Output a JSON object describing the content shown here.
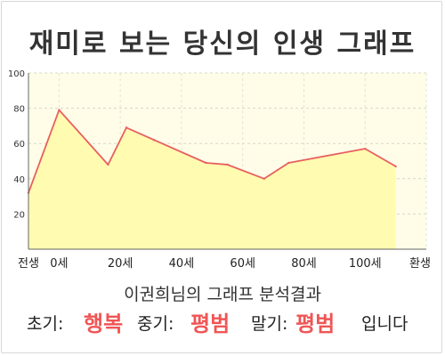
{
  "title": "재미로 보는 당신의 인생 그래프",
  "result": {
    "subtitle": "이권희님의 그래프 분석결과",
    "early_label": "초기:",
    "early_value": "행복",
    "middle_label": "중기:",
    "middle_value": "평범",
    "late_label": "말기:",
    "late_value": "평범",
    "ending": "입니다"
  },
  "colors": {
    "line": "#e86060",
    "fill": "#fffbb0",
    "plot_background": "#fffde8",
    "highlight": "#f05555"
  },
  "chart_data": {
    "type": "area",
    "title": "",
    "xlabel": "",
    "ylabel": "",
    "x": [
      -10,
      0,
      16,
      22,
      31,
      48,
      55,
      67,
      75,
      100,
      110
    ],
    "values": [
      32,
      79,
      48,
      69,
      62,
      49,
      48,
      40,
      49,
      57,
      47
    ],
    "ylim": [
      0,
      100
    ],
    "yticks": [
      20,
      40,
      60,
      80,
      100
    ],
    "xticks": [
      {
        "x": -10,
        "label": "전생"
      },
      {
        "x": 0,
        "label": "0세"
      },
      {
        "x": 20,
        "label": "20세"
      },
      {
        "x": 40,
        "label": "40세"
      },
      {
        "x": 60,
        "label": "60세"
      },
      {
        "x": 80,
        "label": "80세"
      },
      {
        "x": 100,
        "label": "100세"
      },
      {
        "x": 120,
        "label": "환생"
      }
    ],
    "grid": true,
    "legend": "none"
  }
}
